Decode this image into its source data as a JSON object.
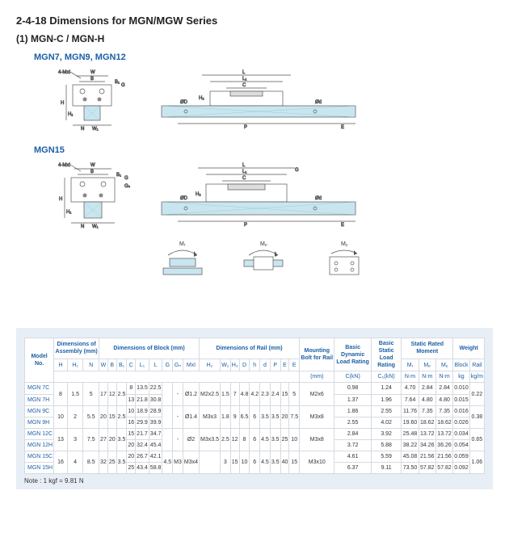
{
  "titles": {
    "section": "2-4-18  Dimensions for  MGN/MGW Series",
    "sub": "(1) MGN-C / MGN-H",
    "diag1": "MGN7, MGN9, MGN12",
    "diag2": "MGN15",
    "note": "Note : 1 kgf = 9.81 N"
  },
  "diagram_labels": {
    "holes": "4-MxI",
    "dims": [
      "W",
      "B",
      "B₁",
      "G",
      "H",
      "H₁",
      "N",
      "W₁",
      "L",
      "L₁",
      "C",
      "P",
      "E",
      "D",
      "d",
      "h",
      "H₂",
      "W₂"
    ],
    "moments": [
      "Mᵣ",
      "Mₚ",
      "Mᵧ"
    ]
  },
  "table": {
    "group_headers": [
      {
        "label": "Model No.",
        "colspan": 1,
        "rowspan": 4
      },
      {
        "label": "Dimensions of Assembly (mm)",
        "colspan": 3,
        "rowspan": 2
      },
      {
        "label": "Dimensions of Block (mm)",
        "colspan": 9,
        "rowspan": 2
      },
      {
        "label": "Dimensions of Rail (mm)",
        "colspan": 7,
        "rowspan": 2
      },
      {
        "label": "Mounting Bolt for Rail",
        "colspan": 1,
        "rowspan": 3
      },
      {
        "label": "Basic Dynamic Load Rating",
        "colspan": 1,
        "rowspan": 3
      },
      {
        "label": "Basic Static Load Rating",
        "colspan": 1,
        "rowspan": 3
      },
      {
        "label": "Static Rated Moment",
        "colspan": 3,
        "rowspan": 2
      },
      {
        "label": "Weight",
        "colspan": 2,
        "rowspan": 2
      }
    ],
    "sub_headers_moment_weight": [
      "Mᵣ",
      "Mₚ",
      "Mᵧ",
      "Block",
      "Rail"
    ],
    "col_syms": [
      "H",
      "H₁",
      "N",
      "W",
      "B",
      "B₁",
      "C",
      "L₁",
      "L",
      "G",
      "Gₙ",
      "MxI",
      "H₂",
      "W₂",
      "H₃",
      "D",
      "h",
      "d",
      "P",
      "E"
    ],
    "unit_row": [
      "(mm)",
      "C(kN)",
      "C₀(kN)",
      "N-m",
      "N-m",
      "N-m",
      "kg",
      "kg/m"
    ],
    "rows": [
      {
        "model": "MGN 7C",
        "assy": {
          "H": "8",
          "H1": "1.5",
          "N": "5"
        },
        "block": {
          "W": "17",
          "B": "12",
          "B1": "2.5",
          "C": "8",
          "L1": "13.5",
          "L": "22.5",
          "G": "",
          "Gn": "-",
          "Mxl": "Ø1.2"
        },
        "rail": {
          "H2": "M2x2.5",
          "W2": "1.5",
          "H3": "7",
          "D": "4.8",
          "h": "4.2",
          "d": "2.3",
          "P": "2.4",
          "E": "15",
          "E2": "5"
        },
        "bolt": "M2x6",
        "C": "0.98",
        "C0": "1.24",
        "Mr": "4.70",
        "Mp": "2.84",
        "My": "2.84",
        "bw": "0.010",
        "rw": "0.22"
      },
      {
        "model": "MGN 7H",
        "assy": {
          "H": "",
          "H1": "",
          "N": ""
        },
        "block": {
          "W": "",
          "B": "",
          "B1": "",
          "C": "13",
          "L1": "21.8",
          "L": "30.8",
          "G": "",
          "Gn": "",
          "Mxl": ""
        },
        "rail": {
          "H2": "",
          "W2": "",
          "H3": "",
          "D": "",
          "h": "",
          "d": "",
          "P": "",
          "E": "",
          "E2": ""
        },
        "bolt": "",
        "C": "1.37",
        "C0": "1.96",
        "Mr": "7.64",
        "Mp": "4.80",
        "My": "4.80",
        "bw": "0.015",
        "rw": ""
      },
      {
        "model": "MGN 9C",
        "assy": {
          "H": "10",
          "H1": "2",
          "N": "5.5"
        },
        "block": {
          "W": "20",
          "B": "15",
          "B1": "2.5",
          "C": "10",
          "L1": "18.9",
          "L": "28.9",
          "G": "",
          "Gn": "-",
          "Mxl": "Ø1.4"
        },
        "rail": {
          "H2": "M3x3",
          "W2": "1.8",
          "H3": "9",
          "D": "6.5",
          "h": "6",
          "d": "3.5",
          "P": "3.5",
          "E": "20",
          "E2": "7.5"
        },
        "bolt": "M3x8",
        "C": "1.86",
        "C0": "2.55",
        "Mr": "11.76",
        "Mp": "7.35",
        "My": "7.35",
        "bw": "0.016",
        "rw": "0.38"
      },
      {
        "model": "MGN 9H",
        "assy": {
          "H": "",
          "H1": "",
          "N": ""
        },
        "block": {
          "W": "",
          "B": "",
          "B1": "",
          "C": "16",
          "L1": "29.9",
          "L": "39.9",
          "G": "",
          "Gn": "",
          "Mxl": ""
        },
        "rail": {
          "H2": "",
          "W2": "",
          "H3": "",
          "D": "",
          "h": "",
          "d": "",
          "P": "",
          "E": "",
          "E2": ""
        },
        "bolt": "",
        "C": "2.55",
        "C0": "4.02",
        "Mr": "19.60",
        "Mp": "18.62",
        "My": "18.62",
        "bw": "0.026",
        "rw": ""
      },
      {
        "model": "MGN 12C",
        "assy": {
          "H": "13",
          "H1": "3",
          "N": "7.5"
        },
        "block": {
          "W": "27",
          "B": "20",
          "B1": "3.5",
          "C": "15",
          "L1": "21.7",
          "L": "34.7",
          "G": "",
          "Gn": "-",
          "Mxl": "Ø2"
        },
        "rail": {
          "H2": "M3x3.5",
          "W2": "2.5",
          "H3": "12",
          "D": "8",
          "h": "6",
          "d": "4.5",
          "P": "3.5",
          "E": "25",
          "E2": "10"
        },
        "bolt": "M3x8",
        "C": "2.84",
        "C0": "3.92",
        "Mr": "25.48",
        "Mp": "13.72",
        "My": "13.72",
        "bw": "0.034",
        "rw": "0.65"
      },
      {
        "model": "MGN 12H",
        "assy": {
          "H": "",
          "H1": "",
          "N": ""
        },
        "block": {
          "W": "",
          "B": "",
          "B1": "",
          "C": "20",
          "L1": "32.4",
          "L": "45.4",
          "G": "",
          "Gn": "",
          "Mxl": ""
        },
        "rail": {
          "H2": "",
          "W2": "",
          "H3": "",
          "D": "",
          "h": "",
          "d": "",
          "P": "",
          "E": "",
          "E2": ""
        },
        "bolt": "",
        "C": "3.72",
        "C0": "5.88",
        "Mr": "38.22",
        "Mp": "34.26",
        "My": "36.26",
        "bw": "0.054",
        "rw": ""
      },
      {
        "model": "MGN 15C",
        "assy": {
          "H": "16",
          "H1": "4",
          "N": "8.5"
        },
        "block": {
          "W": "32",
          "B": "25",
          "B1": "3.5",
          "C": "20",
          "L1": "26.7",
          "L": "42.1",
          "G": "4.5",
          "Gn": "M3",
          "Mxl": "M3x4"
        },
        "rail": {
          "H2": "",
          "W2": "3",
          "H3": "15",
          "D": "10",
          "h": "6",
          "d": "4.5",
          "P": "3.5",
          "E": "40",
          "E2": "15"
        },
        "bolt": "M3x10",
        "C": "4.61",
        "C0": "5.59",
        "Mr": "45.08",
        "Mp": "21.56",
        "My": "21.56",
        "bw": "0.059",
        "rw": "1.06"
      },
      {
        "model": "MGN 15H",
        "assy": {
          "H": "",
          "H1": "",
          "N": ""
        },
        "block": {
          "W": "",
          "B": "",
          "B1": "",
          "C": "25",
          "L1": "43.4",
          "L": "58.8",
          "G": "",
          "Gn": "",
          "Mxl": ""
        },
        "rail": {
          "H2": "",
          "W2": "",
          "H3": "",
          "D": "",
          "h": "",
          "d": "",
          "P": "",
          "E": "",
          "E2": ""
        },
        "bolt": "",
        "C": "6.37",
        "C0": "9.11",
        "Mr": "73.50",
        "Mp": "57.82",
        "My": "57.82",
        "bw": "0.092",
        "rw": ""
      }
    ]
  },
  "colors": {
    "accent": "#1b5fa6",
    "border": "#d5dae2",
    "panel": "#e8eef5",
    "hatch": "#c9e6f0"
  }
}
